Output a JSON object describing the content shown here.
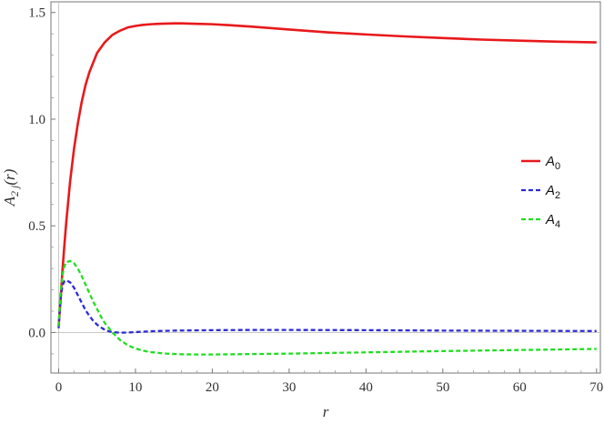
{
  "chart_data": {
    "type": "line",
    "xlabel": "r",
    "ylabel": "A_{2j}(r)",
    "ylabel_parts": {
      "base": "A",
      "sub": "2 j",
      "arg": "(r)"
    },
    "xlim": [
      -1,
      70.5
    ],
    "ylim": [
      -0.19,
      1.55
    ],
    "x_ticks": [
      0,
      10,
      20,
      30,
      40,
      50,
      60,
      70
    ],
    "y_ticks": [
      0.0,
      0.5,
      1.0,
      1.5
    ],
    "y_tick_labels": [
      "0.0",
      "0.5",
      "1.0",
      "1.5"
    ],
    "legend_placement": "right",
    "series": [
      {
        "name": "A0",
        "name_parts": {
          "base": "A",
          "sub": "0"
        },
        "color": "#e8191b",
        "style": "solid",
        "x": [
          0,
          0.25,
          0.5,
          0.75,
          1,
          1.5,
          2,
          2.5,
          3,
          3.5,
          4,
          5,
          6,
          7,
          8,
          9,
          10,
          11,
          12,
          13,
          14,
          15,
          16,
          17,
          18,
          20,
          22,
          25,
          30,
          35,
          40,
          45,
          50,
          55,
          60,
          65,
          70
        ],
        "y": [
          0.03,
          0.15,
          0.29,
          0.41,
          0.52,
          0.71,
          0.86,
          0.98,
          1.08,
          1.16,
          1.22,
          1.31,
          1.36,
          1.395,
          1.415,
          1.43,
          1.437,
          1.442,
          1.445,
          1.447,
          1.448,
          1.449,
          1.449,
          1.448,
          1.447,
          1.445,
          1.441,
          1.434,
          1.42,
          1.407,
          1.397,
          1.388,
          1.38,
          1.373,
          1.368,
          1.363,
          1.36
        ]
      },
      {
        "name": "A2",
        "name_parts": {
          "base": "A",
          "sub": "2"
        },
        "color": "#2b2bd6",
        "style": "dashed",
        "x": [
          0,
          0.25,
          0.5,
          0.75,
          1,
          1.5,
          2,
          2.5,
          3,
          3.5,
          4,
          4.5,
          5,
          5.5,
          6,
          6.5,
          7,
          8,
          9,
          10,
          12,
          15,
          20,
          25,
          30,
          40,
          50,
          60,
          70
        ],
        "y": [
          0.02,
          0.16,
          0.22,
          0.24,
          0.245,
          0.235,
          0.21,
          0.175,
          0.14,
          0.105,
          0.078,
          0.055,
          0.037,
          0.024,
          0.013,
          0.006,
          0.002,
          -0.001,
          0.0,
          0.002,
          0.006,
          0.009,
          0.011,
          0.012,
          0.012,
          0.011,
          0.009,
          0.008,
          0.007
        ]
      },
      {
        "name": "A4",
        "name_parts": {
          "base": "A",
          "sub": "4"
        },
        "color": "#22dd22",
        "style": "dashed",
        "x": [
          0,
          0.25,
          0.5,
          0.75,
          1,
          1.5,
          2,
          2.5,
          3,
          3.5,
          4,
          4.5,
          5,
          5.5,
          6,
          7,
          8,
          9,
          10,
          11,
          12,
          14,
          16,
          18,
          20,
          25,
          30,
          40,
          50,
          60,
          70
        ],
        "y": [
          0.03,
          0.19,
          0.27,
          0.31,
          0.33,
          0.335,
          0.325,
          0.3,
          0.265,
          0.225,
          0.185,
          0.145,
          0.11,
          0.075,
          0.045,
          0.0,
          -0.035,
          -0.06,
          -0.075,
          -0.085,
          -0.092,
          -0.099,
          -0.102,
          -0.103,
          -0.103,
          -0.101,
          -0.099,
          -0.093,
          -0.087,
          -0.082,
          -0.077
        ]
      }
    ]
  }
}
